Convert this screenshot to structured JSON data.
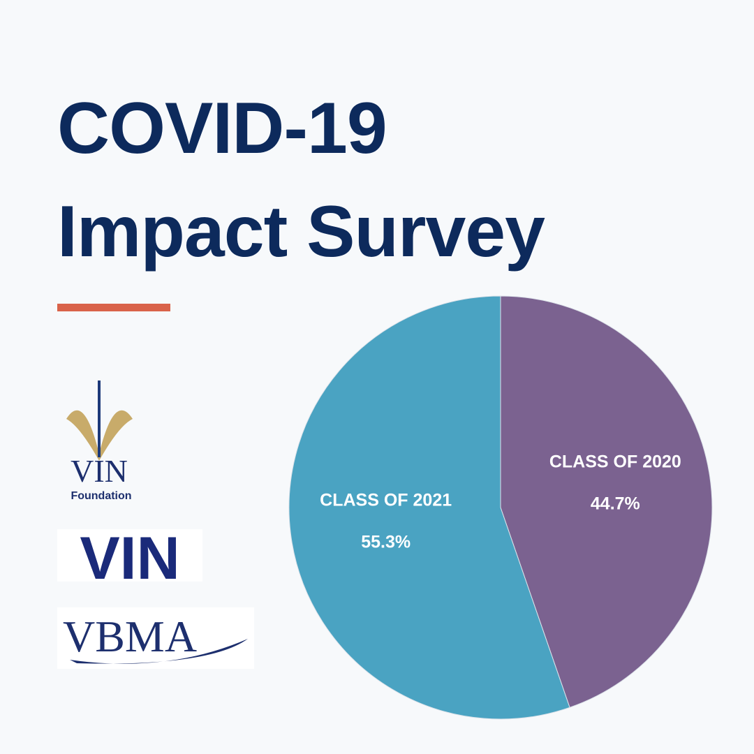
{
  "title": "COVID-19 Impact Survey",
  "logos": {
    "vin_foundation": [
      "VIN",
      "Foundation"
    ],
    "vin": "VIN",
    "vbma": "VBMA"
  },
  "chart_data": {
    "type": "pie",
    "categories": [
      "CLASS OF 2020",
      "CLASS OF 2021"
    ],
    "values": [
      44.7,
      55.3
    ],
    "value_labels": [
      "44.7%",
      "55.3%"
    ],
    "colors": [
      "#7b6290",
      "#4aa3c2"
    ]
  }
}
